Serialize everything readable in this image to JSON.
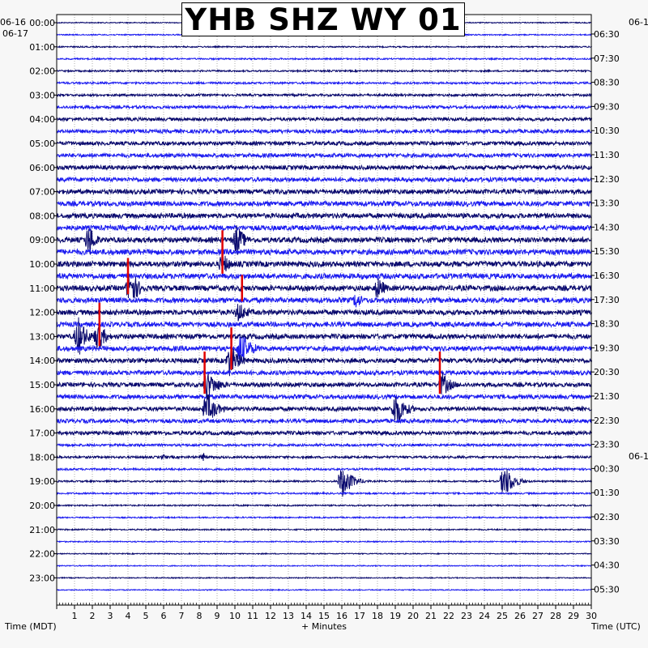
{
  "chart_data": {
    "type": "line",
    "title": "YHB SHZ WY 01",
    "xlabel": "+ Minutes",
    "left_axis_label": "Time (MDT)",
    "right_axis_label": "Time (UTC)",
    "left_date_labels": [
      "06-16",
      "06-17"
    ],
    "right_date_labels": [
      "06-1"
    ],
    "xlim": [
      0,
      30
    ],
    "x_ticks": [
      "1",
      "2",
      "3",
      "4",
      "5",
      "6",
      "7",
      "8",
      "9",
      "10",
      "11",
      "12",
      "13",
      "14",
      "15",
      "16",
      "17",
      "18",
      "19",
      "20",
      "21",
      "22",
      "23",
      "24",
      "25",
      "26",
      "27",
      "28",
      "29",
      "30"
    ],
    "left_row_labels": [
      "00:00",
      "01:00",
      "02:00",
      "03:00",
      "04:00",
      "05:00",
      "06:00",
      "07:00",
      "08:00",
      "09:00",
      "10:00",
      "11:00",
      "12:00",
      "13:00",
      "14:00",
      "15:00",
      "16:00",
      "17:00",
      "18:00",
      "19:00",
      "20:00",
      "21:00",
      "22:00",
      "23:00"
    ],
    "right_row_labels": [
      "06:30",
      "07:30",
      "08:30",
      "09:30",
      "10:30",
      "11:30",
      "12:30",
      "13:30",
      "14:30",
      "15:30",
      "16:30",
      "17:30",
      "18:30",
      "19:30",
      "20:30",
      "21:30",
      "22:30",
      "23:30",
      "00:30",
      "01:30",
      "02:30",
      "03:30",
      "04:30",
      "05:30"
    ],
    "trace_count": 48,
    "trace_colors": [
      "#0a0a6e",
      "#1c1cf0"
    ],
    "trace_noise": [
      0.6,
      0.7,
      0.8,
      0.9,
      1.0,
      1.2,
      1.4,
      1.8,
      2.0,
      2.2,
      2.3,
      2.4,
      2.5,
      2.6,
      2.8,
      3.0,
      3.0,
      3.1,
      3.2,
      3.3,
      3.3,
      3.3,
      3.2,
      3.2,
      3.1,
      3.0,
      3.0,
      3.0,
      2.8,
      2.7,
      2.6,
      2.6,
      2.5,
      2.4,
      2.3,
      1.5,
      1.4,
      1.2,
      1.0,
      1.0,
      0.9,
      0.8,
      0.8,
      0.7,
      0.6,
      0.6,
      0.6,
      0.6
    ],
    "pick_color": "#e00000",
    "events": [
      {
        "trace": 18,
        "minute": 1.8,
        "amplitude": 24,
        "duration": 1.0
      },
      {
        "trace": 18,
        "minute": 10.1,
        "amplitude": 22,
        "duration": 1.2
      },
      {
        "trace": 20,
        "minute": 9.3,
        "amplitude": 16,
        "duration": 1.2
      },
      {
        "trace": 22,
        "minute": 4.1,
        "amplitude": 26,
        "duration": 1.4
      },
      {
        "trace": 22,
        "minute": 18.0,
        "amplitude": 16,
        "duration": 1.2
      },
      {
        "trace": 23,
        "minute": 16.8,
        "amplitude": 12,
        "duration": 1.0
      },
      {
        "trace": 24,
        "minute": 10.2,
        "amplitude": 14,
        "duration": 1.6
      },
      {
        "trace": 26,
        "minute": 1.2,
        "amplitude": 26,
        "duration": 1.4
      },
      {
        "trace": 26,
        "minute": 2.3,
        "amplitude": 22,
        "duration": 1.2
      },
      {
        "trace": 27,
        "minute": 10.3,
        "amplitude": 22,
        "duration": 1.8
      },
      {
        "trace": 28,
        "minute": 9.7,
        "amplitude": 22,
        "duration": 1.6
      },
      {
        "trace": 30,
        "minute": 8.4,
        "amplitude": 18,
        "duration": 2.0
      },
      {
        "trace": 30,
        "minute": 21.6,
        "amplitude": 16,
        "duration": 1.6
      },
      {
        "trace": 32,
        "minute": 8.4,
        "amplitude": 22,
        "duration": 1.6
      },
      {
        "trace": 32,
        "minute": 19.0,
        "amplitude": 24,
        "duration": 1.6
      },
      {
        "trace": 36,
        "minute": 6.0,
        "amplitude": 4,
        "duration": 0.6
      },
      {
        "trace": 36,
        "minute": 8.2,
        "amplitude": 6,
        "duration": 0.6
      },
      {
        "trace": 38,
        "minute": 16.0,
        "amplitude": 22,
        "duration": 1.6
      },
      {
        "trace": 38,
        "minute": 25.1,
        "amplitude": 22,
        "duration": 1.6
      }
    ],
    "picks": [
      {
        "trace": 19,
        "minute": 9.3,
        "span": 3.6
      },
      {
        "trace": 21,
        "minute": 4.0,
        "span": 3.0
      },
      {
        "trace": 22,
        "minute": 10.4,
        "span": 2.2
      },
      {
        "trace": 25,
        "minute": 2.4,
        "span": 3.6
      },
      {
        "trace": 27,
        "minute": 9.8,
        "span": 3.5
      },
      {
        "trace": 29,
        "minute": 8.3,
        "span": 3.5
      },
      {
        "trace": 29,
        "minute": 21.5,
        "span": 3.5
      }
    ]
  }
}
